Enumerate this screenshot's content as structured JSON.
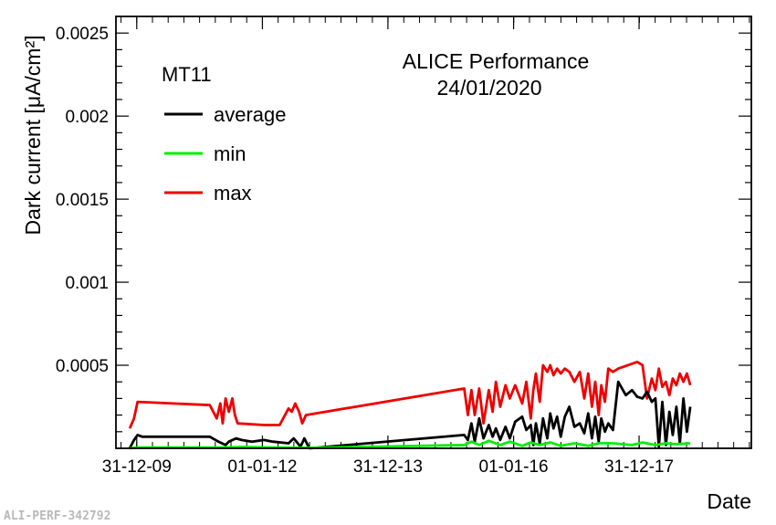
{
  "chart_data": {
    "type": "line",
    "title": "ALICE Performance",
    "subtitle": "24/01/2020",
    "chamber": "MT11",
    "xlabel": "Date",
    "ylabel": "Dark current [μA/cm²]",
    "ylim": [
      0,
      0.0026
    ],
    "xlim": [
      "2009-09-01",
      "2019-10-15"
    ],
    "y_ticks": [
      "0.0005",
      "0.001",
      "0.0015",
      "0.002",
      "0.0025"
    ],
    "x_ticks": [
      {
        "date": "2009-12-31",
        "label": "31-12-09"
      },
      {
        "date": "2012-01-01",
        "label": "01-01-12"
      },
      {
        "date": "2013-12-31",
        "label": "31-12-13"
      },
      {
        "date": "2016-01-01",
        "label": "01-01-16"
      },
      {
        "date": "2017-12-31",
        "label": "31-12-17"
      }
    ],
    "legend_position": "top-left",
    "series": [
      {
        "name": "average",
        "color": "#000000",
        "points": [
          [
            "2009-11-20",
            0.0
          ],
          [
            "2009-12-15",
            5e-05
          ],
          [
            "2010-01-05",
            8e-05
          ],
          [
            "2010-02-01",
            7e-05
          ],
          [
            "2011-03-01",
            7e-05
          ],
          [
            "2011-04-20",
            4e-05
          ],
          [
            "2011-06-01",
            2e-05
          ],
          [
            "2011-06-20",
            4e-05
          ],
          [
            "2011-08-01",
            6e-05
          ],
          [
            "2011-09-01",
            5e-05
          ],
          [
            "2011-11-01",
            4e-05
          ],
          [
            "2012-01-10",
            5e-05
          ],
          [
            "2012-03-01",
            4e-05
          ],
          [
            "2012-06-01",
            3e-05
          ],
          [
            "2012-07-01",
            6e-05
          ],
          [
            "2012-08-10",
            1e-05
          ],
          [
            "2012-09-01",
            6e-05
          ],
          [
            "2012-09-20",
            2e-05
          ],
          [
            "2012-10-01",
            0.0
          ],
          [
            "2015-03-20",
            8e-05
          ],
          [
            "2015-04-10",
            5e-05
          ],
          [
            "2015-05-01",
            0.00015
          ],
          [
            "2015-05-20",
            4e-05
          ],
          [
            "2015-06-15",
            0.00018
          ],
          [
            "2015-07-10",
            6e-05
          ],
          [
            "2015-08-10",
            0.00014
          ],
          [
            "2015-09-01",
            7e-05
          ],
          [
            "2015-09-20",
            0.00012
          ],
          [
            "2015-10-15",
            5e-05
          ],
          [
            "2015-11-15",
            0.00013
          ],
          [
            "2015-12-10",
            6e-05
          ],
          [
            "2016-01-10",
            0.00016
          ],
          [
            "2016-02-20",
            0.00019
          ],
          [
            "2016-03-15",
            0.00011
          ],
          [
            "2016-04-10",
            0.00014
          ],
          [
            "2016-04-25",
            2e-05
          ],
          [
            "2016-05-10",
            0.00015
          ],
          [
            "2016-06-01",
            3e-05
          ],
          [
            "2016-06-20",
            0.00018
          ],
          [
            "2016-07-15",
            6e-05
          ],
          [
            "2016-08-01",
            0.00021
          ],
          [
            "2016-08-20",
            0.00012
          ],
          [
            "2016-09-10",
            0.00019
          ],
          [
            "2016-10-01",
            7e-05
          ],
          [
            "2016-10-25",
            0.00019
          ],
          [
            "2016-11-20",
            0.00025
          ],
          [
            "2016-12-20",
            0.00013
          ],
          [
            "2017-01-20",
            0.00015
          ],
          [
            "2017-02-15",
            9e-05
          ],
          [
            "2017-03-10",
            0.00021
          ],
          [
            "2017-04-01",
            6e-05
          ],
          [
            "2017-04-20",
            0.00019
          ],
          [
            "2017-05-10",
            4e-05
          ],
          [
            "2017-05-25",
            0.00018
          ],
          [
            "2017-06-15",
            0.0001
          ],
          [
            "2017-07-05",
            0.00015
          ],
          [
            "2017-08-01",
            0.00011
          ],
          [
            "2017-09-01",
            0.0004
          ],
          [
            "2017-10-15",
            0.00032
          ],
          [
            "2017-11-20",
            0.00035
          ],
          [
            "2017-12-20",
            0.00031
          ],
          [
            "2018-01-20",
            0.0003
          ],
          [
            "2018-02-15",
            0.00034
          ],
          [
            "2018-03-15",
            0.00028
          ],
          [
            "2018-04-05",
            0.0003
          ],
          [
            "2018-04-25",
            1e-05
          ],
          [
            "2018-05-15",
            0.00028
          ],
          [
            "2018-06-05",
            2e-05
          ],
          [
            "2018-06-25",
            0.00022
          ],
          [
            "2018-07-15",
            8e-05
          ],
          [
            "2018-08-05",
            0.00025
          ],
          [
            "2018-08-25",
            3e-05
          ],
          [
            "2018-09-15",
            0.0003
          ],
          [
            "2018-10-05",
            0.0001
          ],
          [
            "2018-10-25",
            0.00025
          ]
        ]
      },
      {
        "name": "min",
        "color": "#00ee00",
        "points": [
          [
            "2009-11-20",
            0.0
          ],
          [
            "2010-01-05",
            5e-06
          ],
          [
            "2011-06-01",
            5e-06
          ],
          [
            "2011-09-01",
            8e-06
          ],
          [
            "2012-03-01",
            5e-06
          ],
          [
            "2012-10-01",
            3e-06
          ],
          [
            "2015-03-20",
            2e-05
          ],
          [
            "2015-05-01",
            4e-05
          ],
          [
            "2015-06-15",
            2e-05
          ],
          [
            "2015-08-10",
            4.5e-05
          ],
          [
            "2015-10-15",
            2e-05
          ],
          [
            "2015-12-10",
            4e-05
          ],
          [
            "2016-02-20",
            1.5e-05
          ],
          [
            "2016-04-10",
            3.5e-05
          ],
          [
            "2016-06-01",
            2e-05
          ],
          [
            "2016-08-01",
            3.5e-05
          ],
          [
            "2016-10-01",
            1.5e-05
          ],
          [
            "2016-12-20",
            3e-05
          ],
          [
            "2017-03-10",
            1.5e-05
          ],
          [
            "2017-05-10",
            3e-05
          ],
          [
            "2017-08-01",
            3e-05
          ],
          [
            "2017-11-20",
            2e-05
          ],
          [
            "2018-01-20",
            3.5e-05
          ],
          [
            "2018-04-05",
            2e-05
          ],
          [
            "2018-06-05",
            3e-05
          ],
          [
            "2018-08-05",
            2.5e-05
          ],
          [
            "2018-10-25",
            3e-05
          ]
        ]
      },
      {
        "name": "max",
        "color": "#ee0000",
        "points": [
          [
            "2009-11-20",
            0.00012
          ],
          [
            "2009-12-15",
            0.00018
          ],
          [
            "2010-01-05",
            0.00028
          ],
          [
            "2011-03-01",
            0.00026
          ],
          [
            "2011-04-10",
            0.00018
          ],
          [
            "2011-05-01",
            0.00027
          ],
          [
            "2011-05-15",
            0.00015
          ],
          [
            "2011-06-01",
            0.0003
          ],
          [
            "2011-06-20",
            0.00022
          ],
          [
            "2011-07-10",
            0.0003
          ],
          [
            "2011-07-25",
            0.0002
          ],
          [
            "2011-08-10",
            0.00015
          ],
          [
            "2012-01-10",
            0.00014
          ],
          [
            "2012-04-10",
            0.00014
          ],
          [
            "2012-06-01",
            0.00024
          ],
          [
            "2012-06-20",
            0.00022
          ],
          [
            "2012-07-10",
            0.00027
          ],
          [
            "2012-08-01",
            0.00022
          ],
          [
            "2012-08-20",
            0.00015
          ],
          [
            "2012-09-10",
            0.0002
          ],
          [
            "2015-03-20",
            0.00036
          ],
          [
            "2015-04-10",
            0.0002
          ],
          [
            "2015-05-01",
            0.00035
          ],
          [
            "2015-05-20",
            0.0002
          ],
          [
            "2015-06-15",
            0.00036
          ],
          [
            "2015-07-10",
            0.00015
          ],
          [
            "2015-08-10",
            0.00035
          ],
          [
            "2015-09-01",
            0.00022
          ],
          [
            "2015-09-20",
            0.0004
          ],
          [
            "2015-10-15",
            0.00025
          ],
          [
            "2015-11-15",
            0.00038
          ],
          [
            "2015-12-10",
            0.0003
          ],
          [
            "2016-01-10",
            0.00038
          ],
          [
            "2016-02-20",
            0.00027
          ],
          [
            "2016-03-15",
            0.0004
          ],
          [
            "2016-04-10",
            0.00018
          ],
          [
            "2016-04-25",
            0.00035
          ],
          [
            "2016-05-10",
            0.00045
          ],
          [
            "2016-06-01",
            0.00028
          ],
          [
            "2016-06-20",
            0.0005
          ],
          [
            "2016-07-15",
            0.00046
          ],
          [
            "2016-08-01",
            0.0005
          ],
          [
            "2016-08-20",
            0.00044
          ],
          [
            "2016-09-10",
            0.00048
          ],
          [
            "2016-10-01",
            0.00045
          ],
          [
            "2016-10-25",
            0.00048
          ],
          [
            "2016-11-20",
            0.00046
          ],
          [
            "2016-12-20",
            0.0004
          ],
          [
            "2017-01-20",
            0.00046
          ],
          [
            "2017-02-15",
            0.0003
          ],
          [
            "2017-03-10",
            0.00045
          ],
          [
            "2017-04-01",
            0.00025
          ],
          [
            "2017-04-20",
            0.0004
          ],
          [
            "2017-05-10",
            0.0002
          ],
          [
            "2017-05-25",
            0.00038
          ],
          [
            "2017-06-15",
            0.00028
          ],
          [
            "2017-07-05",
            0.00048
          ],
          [
            "2017-08-01",
            0.00046
          ],
          [
            "2017-09-01",
            0.00048
          ],
          [
            "2017-12-20",
            0.00052
          ],
          [
            "2018-01-20",
            0.0005
          ],
          [
            "2018-02-15",
            0.0003
          ],
          [
            "2018-03-15",
            0.00042
          ],
          [
            "2018-04-05",
            0.00035
          ],
          [
            "2018-04-25",
            0.00048
          ],
          [
            "2018-05-15",
            0.00037
          ],
          [
            "2018-06-05",
            0.0004
          ],
          [
            "2018-06-25",
            0.00032
          ],
          [
            "2018-07-15",
            0.00042
          ],
          [
            "2018-08-05",
            0.00038
          ],
          [
            "2018-08-25",
            0.00045
          ],
          [
            "2018-09-15",
            0.0004
          ],
          [
            "2018-10-05",
            0.00045
          ],
          [
            "2018-10-25",
            0.00038
          ]
        ]
      }
    ]
  },
  "footer": {
    "reference": "ALI-PERF-342792"
  }
}
